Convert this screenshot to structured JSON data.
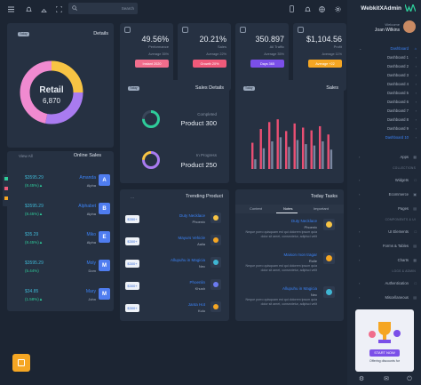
{
  "topbar": {
    "search_placeholder": "Search"
  },
  "details": {
    "badge": "Today",
    "title": "Details",
    "donut_label": "Retail",
    "donut_value": "6,870"
  },
  "stats": [
    {
      "value": "49.56%",
      "label": "Performance",
      "sub": "Average 35%",
      "button": "Instant 2020",
      "color": "#f06d8c"
    },
    {
      "value": "20.21%",
      "label": "Sales",
      "sub": "Average 22%",
      "button": "Growth 20%",
      "color": "#ef5a7a"
    },
    {
      "value": "350.897",
      "label": "All Traffic",
      "sub": "Average 35%",
      "button": "Days 365",
      "color": "#7b4fe8"
    },
    {
      "value": "$1,104.56",
      "label": "Profit",
      "sub": "Average 11%",
      "button": "Average +22",
      "color": "#f5a623"
    }
  ],
  "sales_details": {
    "badge": "Today",
    "title": "Sales Details",
    "items": [
      {
        "status": "Completed",
        "product": "Product 300"
      },
      {
        "status": "In Progress",
        "product": "Product 250"
      }
    ]
  },
  "sales_chart": {
    "badge": "Today",
    "title": "Sales"
  },
  "chart_data": {
    "type": "bar",
    "title": "Sales",
    "series": [
      {
        "values": [
          38,
          58,
          68,
          72,
          55,
          66,
          60,
          56,
          62,
          50
        ]
      },
      {
        "values": [
          14,
          30,
          40,
          46,
          32,
          42,
          36,
          34,
          40,
          28
        ]
      }
    ],
    "colors": [
      "#ea4f73",
      "#7a86a0"
    ]
  },
  "online_sales": {
    "view_all": "View All",
    "title": "Online Sales",
    "rows": [
      {
        "amount": "$3595.29",
        "change": "(8.45%)▲",
        "name": "Amanda",
        "sub": "Alpha",
        "initial": "A"
      },
      {
        "amount": "$3595.29",
        "change": "(8.45%)▲",
        "name": "Alphabet",
        "sub": "Alpha",
        "initial": "B"
      },
      {
        "amount": "$35.29",
        "change": "(8.45%)▲",
        "name": "Miko",
        "sub": "Alpha",
        "initial": "E"
      },
      {
        "amount": "$3595.29",
        "change": "(5.44%)",
        "name": "Moly",
        "sub": "Dom",
        "initial": "M"
      },
      {
        "amount": "$34.85",
        "change": "(1.58%)▲",
        "name": "Mary",
        "sub": "John",
        "initial": "M"
      }
    ]
  },
  "trending": {
    "title": "Trending Product",
    "more": "...",
    "items": [
      {
        "price": "$350+",
        "name": "Duty Necklace",
        "sub": "Phoenix"
      },
      {
        "price": "$300+",
        "name": "Mayurs Vehicle",
        "sub": "Aalia"
      },
      {
        "price": "$300+",
        "name": "Allupuhu in Magicia",
        "sub": "Nec"
      },
      {
        "price": "$300+",
        "name": "Phoenlin",
        "sub": "Khush"
      },
      {
        "price": "$300+",
        "name": "Janta Hot",
        "sub": "Kulu"
      }
    ]
  },
  "tasks": {
    "title": "Today Tasks",
    "tabs": [
      "Content",
      "Notes",
      "Important"
    ],
    "items": [
      {
        "name": "Duty Necklace",
        "sub": "Phoenix",
        "desc": "Neque porro quisquam est qui dolorem ipsum quia dolor sit amet, consectetur, adipisci velit"
      },
      {
        "name": "Maison mon tragar",
        "sub": "Rolle",
        "desc": "Neque porro quisquam est qui dolorem ipsum quia dolor sit amet, consectetur, adipisci velit"
      },
      {
        "name": "Allupuhu in Magicia",
        "sub": "Nec",
        "desc": "Neque porro quisquam est qui dolorem ipsum quia dolor sit amet, consectetur, adipisci velit"
      }
    ]
  },
  "sidebar": {
    "brand": "WebkitXAdmin",
    "welcome": "Welcome",
    "user": "Joan Wilkins",
    "dashboard": "Dashboard",
    "dashboards": [
      "Dashboard 1",
      "Dashboard 2",
      "Dashboard 3",
      "Dashboard 4",
      "Dashboard 5",
      "Dashboard 6",
      "Dashboard 7",
      "Dashboard 8",
      "Dashboard 9",
      "Dashboard 10"
    ],
    "apps": "Apps",
    "collections_head": "COLLECTIONS",
    "widgets": "Widgets",
    "ecommerce": "Ecommerce",
    "pages": "Pages",
    "components_head": "COMPONENTS & UI",
    "ui_elements": "UI Elements",
    "forms_tables": "Forms & Tables",
    "charts": "Charts",
    "logs_head": "LOGS & ADMIN",
    "authentication": "Authentication",
    "miscellaneous": "Miscellaneous",
    "promo_title": "START NOW",
    "promo_sub": "Offering discounts for"
  }
}
